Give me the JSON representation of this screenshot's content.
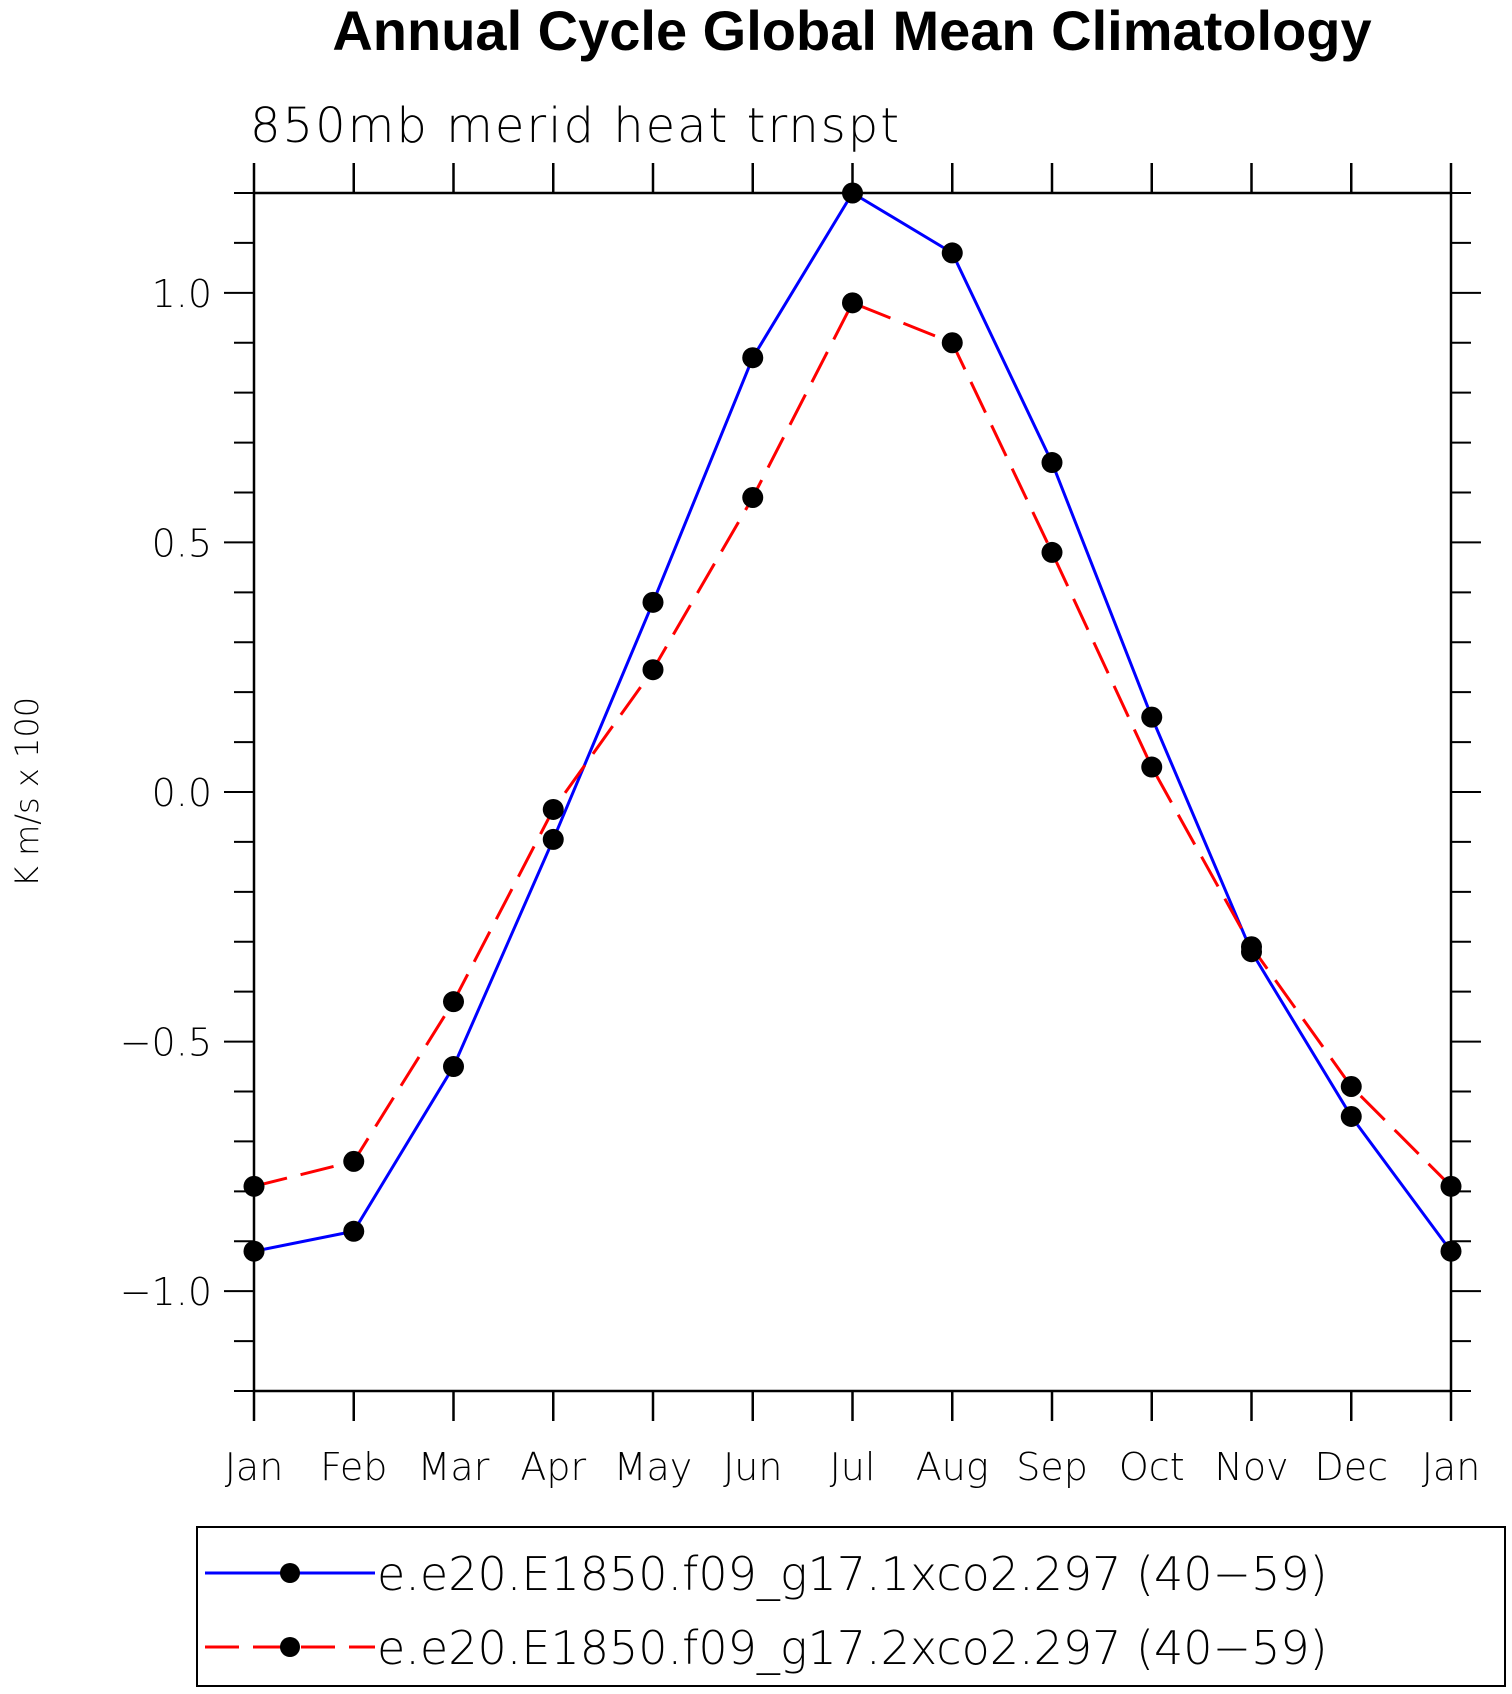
{
  "chart_data": {
    "type": "line",
    "title": "Annual Cycle Global Mean Climatology",
    "subtitle": "850mb merid heat trnspt",
    "xlabel": "",
    "ylabel": "K m/s x 100",
    "categories": [
      "Jan",
      "Feb",
      "Mar",
      "Apr",
      "May",
      "Jun",
      "Jul",
      "Aug",
      "Sep",
      "Oct",
      "Nov",
      "Dec",
      "Jan"
    ],
    "ylim": [
      -1.2,
      1.2
    ],
    "yticks": [
      -1.0,
      -0.5,
      0.0,
      0.5,
      1.0
    ],
    "ytick_labels": [
      "−1.0",
      "−0.5",
      "0.0",
      "0.5",
      "1.0"
    ],
    "series": [
      {
        "name": "e.e20.E1850.f09_g17.1xco2.297 (40−59)",
        "color": "#0000ff",
        "dash": "solid",
        "values": [
          -0.92,
          -0.88,
          -0.55,
          -0.095,
          0.38,
          0.87,
          1.2,
          1.08,
          0.66,
          0.15,
          -0.32,
          -0.65,
          -0.92
        ]
      },
      {
        "name": "e.e20.E1850.f09_g17.2xco2.297 (40−59)",
        "color": "#ff0000",
        "dash": "dashed",
        "values": [
          -0.79,
          -0.74,
          -0.42,
          -0.035,
          0.245,
          0.59,
          0.98,
          0.9,
          0.48,
          0.05,
          -0.31,
          -0.59,
          -0.79
        ]
      }
    ],
    "legend_position": "bottom"
  }
}
